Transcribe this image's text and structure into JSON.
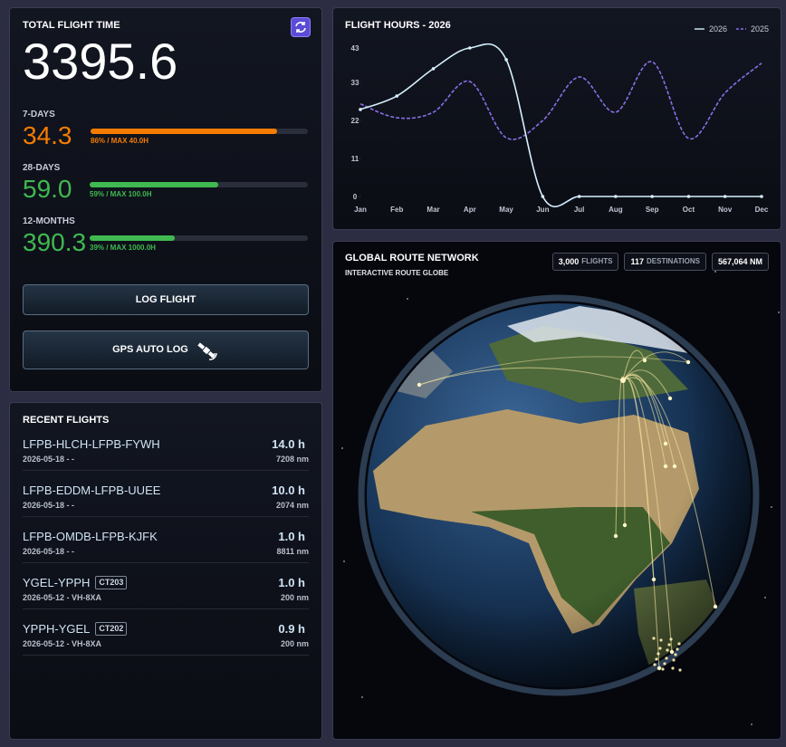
{
  "summary": {
    "title": "TOTAL FLIGHT TIME",
    "total": "3395.6",
    "stats": [
      {
        "label": "7-DAYS",
        "value": "34.3",
        "percent": 86,
        "note": "86% / MAX 40.0H",
        "color": "#f57c00"
      },
      {
        "label": "28-DAYS",
        "value": "59.0",
        "percent": 59,
        "note": "59% / MAX 100.0H",
        "color": "#3fb950"
      },
      {
        "label": "12-MONTHS",
        "value": "390.3",
        "percent": 39,
        "note": "39% / MAX 1000.0H",
        "color": "#3fb950"
      }
    ]
  },
  "actions": [
    "LOG FLIGHT",
    "GPS AUTO LOG"
  ],
  "recent_flights": {
    "title": "RECENT FLIGHTS",
    "rows": [
      {
        "route": "LFPB-HLCH-LFPB-FYWH",
        "date": "2026-05-18 - -",
        "hours": "14.0 h",
        "distance": "7208 nm"
      },
      {
        "route": "LFPB-EDDM-LFPB-UUEE",
        "date": "2026-05-18 - -",
        "hours": "10.0 h",
        "distance": "2074 nm"
      },
      {
        "route": "LFPB-OMDB-LFPB-KJFK",
        "date": "2026-05-18 - -",
        "hours": "1.0 h",
        "distance": "8811 nm"
      },
      {
        "route": "YGEL-YPPH",
        "tag": "CT203",
        "date": "2026-05-12 - VH-8XA",
        "hours": "1.0 h",
        "distance": "200 nm"
      },
      {
        "route": "YPPH-YGEL",
        "tag": "CT202",
        "date": "2026-05-12 - VH-8XA",
        "hours": "0.9 h",
        "distance": "200 nm"
      }
    ]
  },
  "chart_data": {
    "type": "line",
    "title": "FLIGHT HOURS - 2026",
    "categories": [
      "Jan",
      "Feb",
      "Mar",
      "Apr",
      "May",
      "Jun",
      "Jul",
      "Aug",
      "Sep",
      "Oct",
      "Nov",
      "Dec"
    ],
    "series": [
      {
        "name": "2026",
        "color": "#d6f0ff",
        "style": "solid",
        "markers": true,
        "values": [
          25.2,
          29.1,
          37,
          43,
          39.6,
          0,
          0,
          0,
          0,
          0,
          0,
          0
        ]
      },
      {
        "name": "2025",
        "color": "#8a6fe8",
        "style": "dashed",
        "markers": false,
        "values": [
          26.8,
          22.8,
          24.4,
          33.3,
          17,
          22,
          34.6,
          24.4,
          39,
          16.8,
          30,
          38.6
        ]
      }
    ],
    "ylim": [
      0,
      43
    ],
    "yticks": [
      0,
      11,
      22,
      33,
      43
    ],
    "legend": "top-right"
  },
  "route_network": {
    "title": "GLOBAL ROUTE NETWORK",
    "subtitle": "INTERACTIVE ROUTE GLOBE",
    "badges": [
      {
        "value": "3,000",
        "label": "FLIGHTS"
      },
      {
        "value": "117",
        "label": "DESTINATIONS"
      },
      {
        "value": "567,064 NM"
      }
    ]
  }
}
